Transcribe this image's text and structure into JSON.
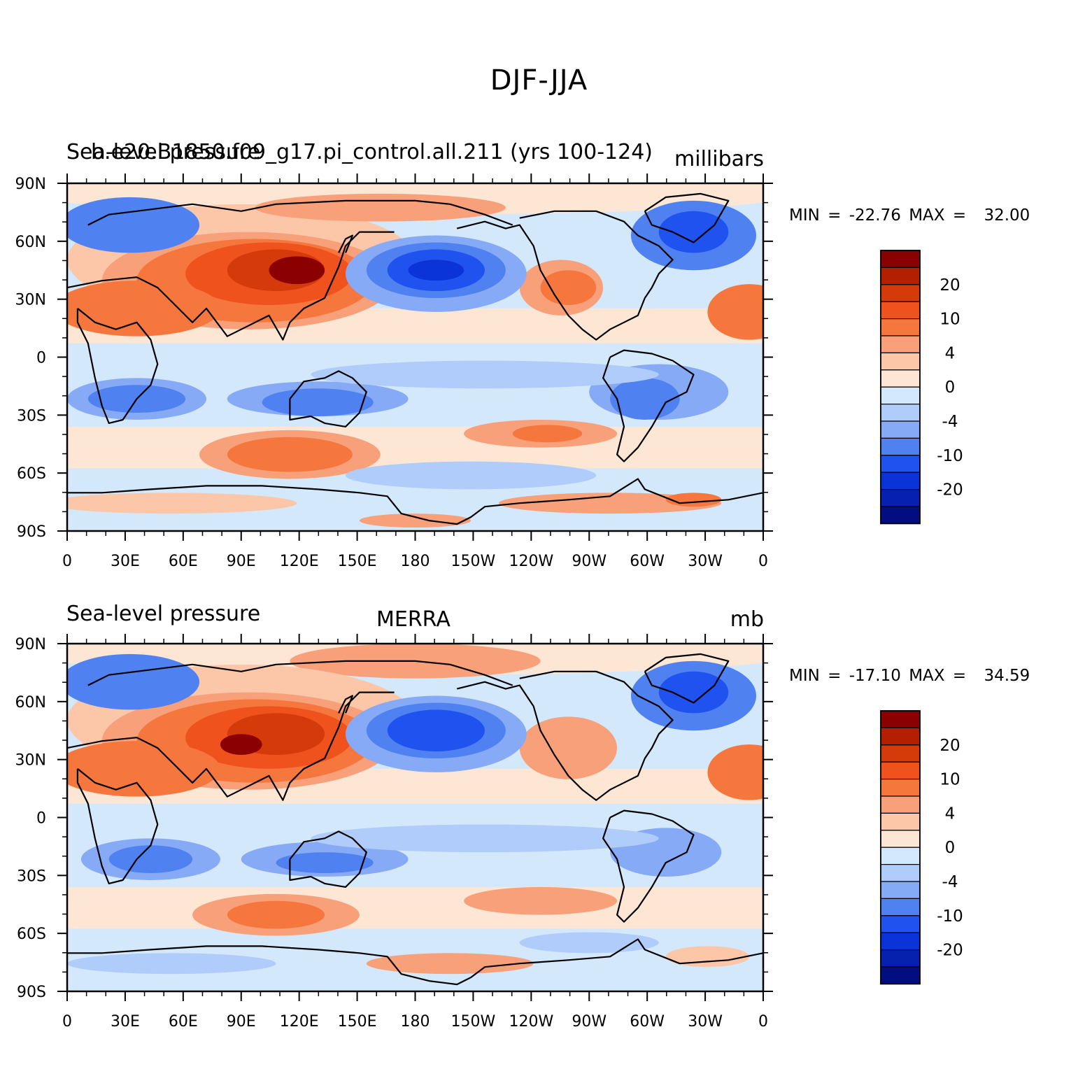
{
  "main_title": "DJF-JJA",
  "colorbar_colors": [
    "#8b0000",
    "#b22000",
    "#d43a0a",
    "#f0521e",
    "#f5773e",
    "#f8a07a",
    "#fbc7a8",
    "#fde6d4",
    "#d4e8fc",
    "#b0ccfa",
    "#86aaf5",
    "#4f82f0",
    "#1f52ef",
    "#0a33d8",
    "#0620b0",
    "#020d82"
  ],
  "chart_data": [
    {
      "type": "heatmap",
      "panel": "top",
      "left_title": "Sea-level pressure",
      "center_title": "b.e20.B1850.f09_g17.pi_control.all.211 (yrs 100-124)",
      "right_title": "millibars",
      "x_ticks": [
        "0",
        "30E",
        "60E",
        "90E",
        "120E",
        "150E",
        "180",
        "150W",
        "120W",
        "90W",
        "60W",
        "30W",
        "0"
      ],
      "y_ticks": [
        "90N",
        "60N",
        "30N",
        "0",
        "30S",
        "60S",
        "90S"
      ],
      "min_label": "MIN =",
      "min": "-22.76",
      "max_label": "MAX =",
      "max": "32.00",
      "colorbar_labels": [
        "20",
        "10",
        "4",
        "0",
        "-4",
        "-10",
        "-20"
      ]
    },
    {
      "type": "heatmap",
      "panel": "bottom",
      "left_title": "Sea-level pressure",
      "center_title": "MERRA",
      "right_title": "mb",
      "x_ticks": [
        "0",
        "30E",
        "60E",
        "90E",
        "120E",
        "150E",
        "180",
        "150W",
        "120W",
        "90W",
        "60W",
        "30W",
        "0"
      ],
      "y_ticks": [
        "90N",
        "60N",
        "30N",
        "0",
        "30S",
        "60S",
        "90S"
      ],
      "min_label": "MIN =",
      "min": "-17.10",
      "max_label": "MAX =",
      "max": "34.59",
      "colorbar_labels": [
        "20",
        "10",
        "4",
        "0",
        "-4",
        "-10",
        "-20"
      ]
    }
  ]
}
